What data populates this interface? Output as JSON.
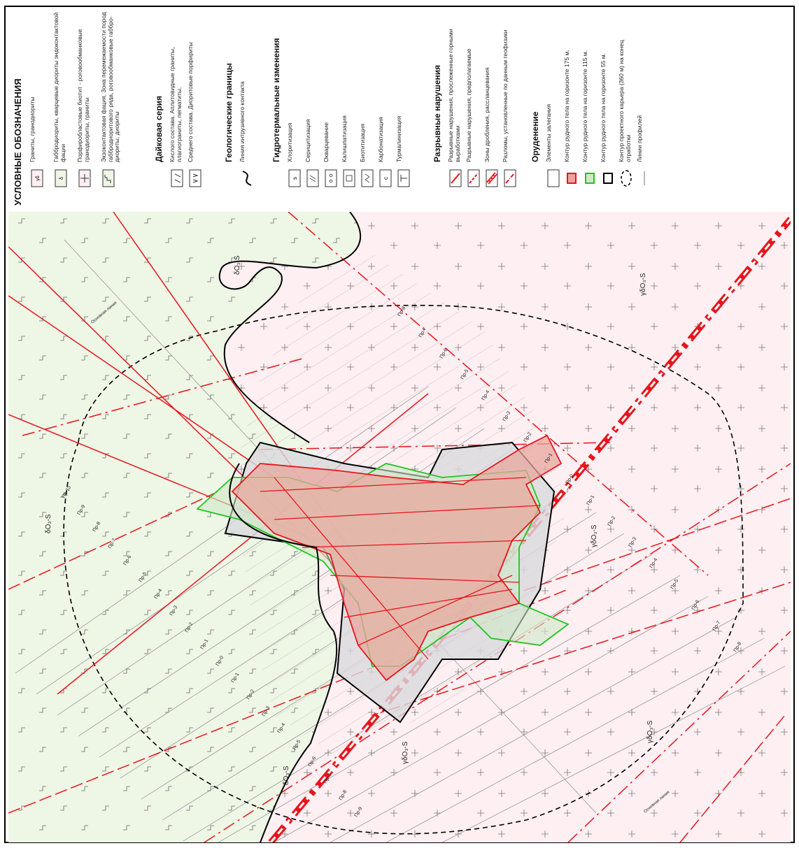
{
  "legend": {
    "title": "УСЛОВНЫЕ ОБОЗНАЧЕНИЯ",
    "rocks": [
      {
        "symbol": "γδO₃-S",
        "label": "Граниты, гранодиориты"
      },
      {
        "symbol": "δO₃-S",
        "label": "Габбродиориты, кварцевые диориты эндоконтактовой фации"
      },
      {
        "symbol": "",
        "label": "Порфиробластовые биотит - роговообманковые гранодиориты, граниты"
      },
      {
        "symbol": "",
        "label": "Экзоконтактовая фация. Зона перемежаемости пород габбродиоритового ряда, роговообманковые габбро-диориты, диориты"
      }
    ],
    "dike_title": "Дайковая серия",
    "dikes": [
      {
        "symbol": "",
        "label": "Кислого состава. Аплитовидные граниты, плагиограниты, пегматиты."
      },
      {
        "symbol": "",
        "label": "Среднего состава. Диоритовые порфириты"
      }
    ],
    "boundaries_title": "Геологические границы",
    "boundaries": [
      {
        "symbol": "",
        "label": "Линия интрузивного контакта"
      }
    ],
    "alteration_title": "Гидротермальные изменения",
    "alterations": [
      {
        "symbol": "s",
        "label": "Хлоритизация"
      },
      {
        "symbol": "",
        "label": "Серицитизация"
      },
      {
        "symbol": "",
        "label": "Окварцевание"
      },
      {
        "symbol": "",
        "label": "Калишпатизация"
      },
      {
        "symbol": "",
        "label": "Биотитизация"
      },
      {
        "symbol": "c",
        "label": "Карбонатизация"
      },
      {
        "symbol": "T",
        "label": "Турмалинизация"
      }
    ],
    "faults_title": "Разрывные нарушения",
    "faults": [
      {
        "symbol": "",
        "label": "Разрывные нарушения, прослеженные горными выработками"
      },
      {
        "symbol": "",
        "label": "Разрывные нарушения, предполагаемые"
      },
      {
        "symbol": "",
        "label": "Зоны дробления, рассланцевания"
      },
      {
        "symbol": "",
        "label": "Разломы, установленные по данным геофизики"
      }
    ],
    "ore_title": "Оруденение",
    "ore": [
      {
        "symbol": "",
        "label": "Элементы залегания"
      },
      {
        "symbol": "",
        "label": "Контур рудного тела на горизонте 175 м."
      },
      {
        "symbol": "",
        "label": "Контур рудного тела на горизонте 115 м."
      },
      {
        "symbol": "",
        "label": "Контур рудного тела на горизонте 55 м."
      },
      {
        "symbol": "",
        "label": "Контур проектного карьера (360 м) на конец отработки"
      },
      {
        "symbol": "Пр-3",
        "label": "Линии профилей"
      }
    ]
  },
  "map": {
    "rock_labels": [
      "δO₃-S",
      "δO₃-S",
      "δO₃-S",
      "γδO₃-S",
      "γδO₃-S",
      "γδO₃-S",
      "γδO₃-S"
    ],
    "profile_labels_left": [
      "Пр-10",
      "Пр-9",
      "Пр-8",
      "Пр-7",
      "Пр-6",
      "Пр-5",
      "Пр-4",
      "Пр-3",
      "Пр-2",
      "Пр-1",
      "Пр-0",
      "Пр-1",
      "Пр-2",
      "Пр-3",
      "Пр-4",
      "Пр-5",
      "Пр-6",
      "Пр-7",
      "Пр-8",
      "Пр-9"
    ],
    "profile_labels_right": [
      "Пр-8",
      "Пр-7",
      "Пр-6",
      "Пр-5",
      "Пр-4",
      "Пр-3",
      "Пр-2",
      "Пр-1",
      "Пр-0",
      "Пр-1",
      "Пр-2",
      "Пр-3",
      "Пр-4",
      "Пр-5",
      "Пр-6",
      "Пр-7",
      "Пр-8"
    ],
    "axis_labels": [
      "Основная линия",
      "Основная линия"
    ],
    "colors": {
      "granite_bg": "#fdeff2",
      "diorite_bg": "#eef6e6",
      "fault": "#e8141b",
      "ore_175": "#e8141b",
      "ore_115": "#22c422",
      "ore_55": "#000000",
      "pit": "#000000",
      "profile": "#8a8a8a"
    }
  }
}
